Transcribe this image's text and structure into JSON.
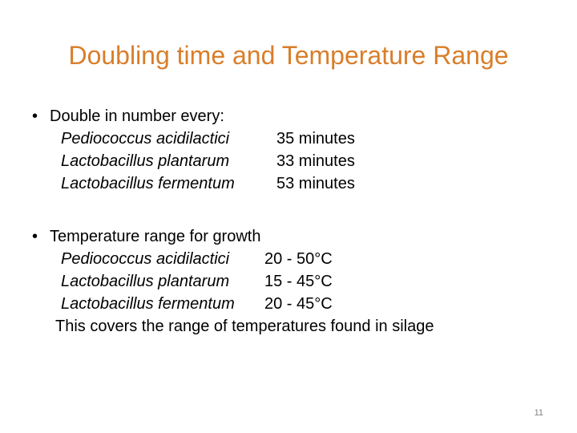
{
  "slide": {
    "title": "Doubling time and Temperature Range",
    "title_color": "#D97E2A",
    "page_number": "11"
  },
  "doubling": {
    "bullet_symbol": "•",
    "heading": "Double in number every:",
    "rows": [
      {
        "species": "Pediococcus acidilactici",
        "value": "35 minutes"
      },
      {
        "species": "Lactobacillus plantarum",
        "value": "33 minutes"
      },
      {
        "species": "Lactobacillus fermentum",
        "value": "53  minutes"
      }
    ]
  },
  "temperature": {
    "bullet_symbol": "•",
    "heading": "Temperature range for growth",
    "rows": [
      {
        "species": "Pediococcus acidilactici",
        "value": "20 - 50°C"
      },
      {
        "species": "Lactobacillus plantarum",
        "value": "15 - 45°C"
      },
      {
        "species": "Lactobacillus fermentum",
        "value": "20 - 45°C"
      }
    ],
    "note": "This covers the range of temperatures found in silage"
  }
}
